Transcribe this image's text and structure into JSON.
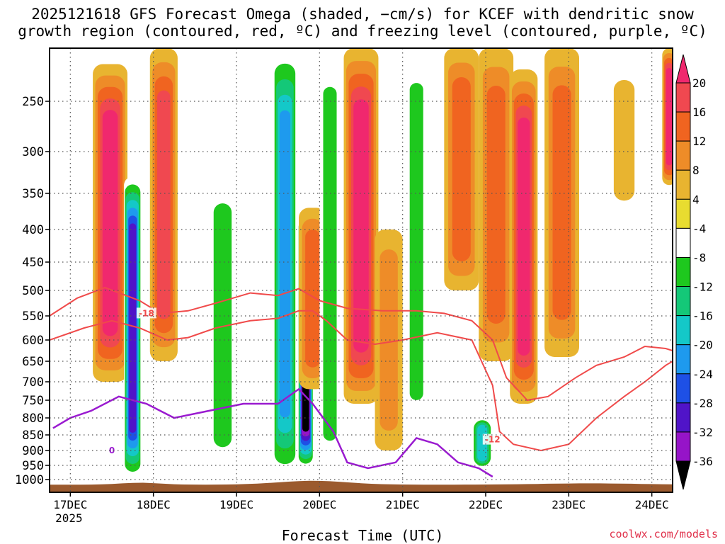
{
  "title_lines": [
    "2025121618 GFS Forecast Omega (shaded, −cm/s) for KCEF with dendritic snow",
    "growth region (contoured, red, ºC) and freezing level (contoured, purple, ºC)"
  ],
  "x_axis_title": "Forecast Time (UTC)",
  "credit": "coolwx.com/models",
  "colors": {
    "contour_dgz": "#f04a4a",
    "contour_freezing": "#9a1ad0",
    "terrain": "#9b5a2e",
    "grid": "#555555"
  },
  "chart_data": {
    "type": "heatmap",
    "x_ticks": [
      {
        "label": "17DEC",
        "sub": "2025",
        "t": 0
      },
      {
        "label": "18DEC",
        "t": 24
      },
      {
        "label": "19DEC",
        "t": 48
      },
      {
        "label": "20DEC",
        "t": 72
      },
      {
        "label": "21DEC",
        "t": 96
      },
      {
        "label": "22DEC",
        "t": 120
      },
      {
        "label": "23DEC",
        "t": 144
      },
      {
        "label": "24DEC",
        "t": 168
      }
    ],
    "x_range_hours": [
      -6,
      174
    ],
    "y_ticks": [
      250,
      300,
      350,
      400,
      450,
      500,
      550,
      600,
      650,
      700,
      750,
      800,
      850,
      900,
      950,
      1000
    ],
    "y_range_hpa": [
      200,
      1020
    ],
    "grid": true,
    "colorbar": {
      "levels": [
        20,
        16,
        12,
        8,
        4,
        -4,
        -8,
        -12,
        -16,
        -20,
        -24,
        -28,
        -32,
        -36
      ],
      "colors": [
        "#f0286e",
        "#f04850",
        "#f06420",
        "#ee8c28",
        "#e8b430",
        "#e8dc30",
        "#ffffff",
        "#1ec81e",
        "#14c878",
        "#14c8c8",
        "#1e9aee",
        "#1e50e6",
        "#5014c8",
        "#9614c8",
        "#a0a0a0",
        "#000000"
      ]
    },
    "omega_features": [
      {
        "t": 11.5,
        "p_top": 215,
        "p_bot": 700,
        "w": 5,
        "v": 20
      },
      {
        "t": 27,
        "p_top": 200,
        "p_bot": 650,
        "w": 4,
        "v": 18
      },
      {
        "t": 18,
        "p_top": 330,
        "p_bot": 1000,
        "w": 2.5,
        "v": -30
      },
      {
        "t": 44,
        "p_top": 330,
        "p_bot": 980,
        "w": 4,
        "v": -10
      },
      {
        "t": 62,
        "p_top": 200,
        "p_bot": 1000,
        "w": 3.5,
        "v": -20
      },
      {
        "t": 68,
        "p_top": 380,
        "p_bot": 960,
        "w": 2.2,
        "v": -40
      },
      {
        "t": 70,
        "p_top": 370,
        "p_bot": 720,
        "w": 4,
        "v": 14
      },
      {
        "t": 75,
        "p_top": 200,
        "p_bot": 1000,
        "w": 3,
        "v": -10
      },
      {
        "t": 84,
        "p_top": 200,
        "p_bot": 760,
        "w": 5,
        "v": 20
      },
      {
        "t": 92,
        "p_top": 400,
        "p_bot": 900,
        "w": 4,
        "v": 8
      },
      {
        "t": 100,
        "p_top": 200,
        "p_bot": 850,
        "w": 3,
        "v": -8
      },
      {
        "t": 113,
        "p_top": 200,
        "p_bot": 500,
        "w": 5,
        "v": 12
      },
      {
        "t": 119,
        "p_top": 800,
        "p_bot": 960,
        "w": 3,
        "v": -18
      },
      {
        "t": 123,
        "p_top": 200,
        "p_bot": 650,
        "w": 5,
        "v": 14
      },
      {
        "t": 131,
        "p_top": 220,
        "p_bot": 760,
        "w": 4,
        "v": 20
      },
      {
        "t": 142,
        "p_top": 200,
        "p_bot": 640,
        "w": 5,
        "v": 12
      },
      {
        "t": 160,
        "p_top": 230,
        "p_bot": 360,
        "w": 3,
        "v": 6
      },
      {
        "t": 173,
        "p_top": 200,
        "p_bot": 340,
        "w": 2,
        "v": 20
      }
    ],
    "contours": [
      {
        "label": "-18",
        "kind": "dgz",
        "label_at": {
          "t": 22,
          "p": 545
        },
        "points": [
          [
            -6,
            550
          ],
          [
            2,
            515
          ],
          [
            10,
            495
          ],
          [
            20,
            520
          ],
          [
            26,
            545
          ],
          [
            34,
            540
          ],
          [
            42,
            525
          ],
          [
            52,
            505
          ],
          [
            60,
            510
          ],
          [
            66,
            497
          ],
          [
            72,
            520
          ],
          [
            80,
            535
          ],
          [
            90,
            540
          ],
          [
            100,
            540
          ],
          [
            108,
            545
          ],
          [
            116,
            560
          ],
          [
            122,
            600
          ],
          [
            126,
            690
          ],
          [
            132,
            750
          ],
          [
            138,
            740
          ],
          [
            146,
            690
          ],
          [
            152,
            660
          ],
          [
            160,
            640
          ],
          [
            166,
            615
          ],
          [
            172,
            620
          ],
          [
            174,
            625
          ]
        ]
      },
      {
        "label": "-12",
        "kind": "dgz",
        "label_at": {
          "t": 122,
          "p": 865
        },
        "points": [
          [
            -6,
            600
          ],
          [
            4,
            575
          ],
          [
            12,
            560
          ],
          [
            20,
            575
          ],
          [
            28,
            600
          ],
          [
            34,
            595
          ],
          [
            42,
            575
          ],
          [
            52,
            560
          ],
          [
            60,
            555
          ],
          [
            66,
            540
          ],
          [
            70,
            540
          ],
          [
            74,
            560
          ],
          [
            80,
            600
          ],
          [
            88,
            610
          ],
          [
            96,
            600
          ],
          [
            106,
            585
          ],
          [
            116,
            600
          ],
          [
            122,
            710
          ],
          [
            124,
            840
          ],
          [
            128,
            880
          ],
          [
            136,
            900
          ],
          [
            144,
            880
          ],
          [
            152,
            800
          ],
          [
            160,
            740
          ],
          [
            166,
            700
          ],
          [
            172,
            660
          ],
          [
            174,
            650
          ]
        ]
      },
      {
        "label": "0",
        "kind": "freezing",
        "label_at": {
          "t": 12,
          "p": 900
        },
        "points": [
          [
            -5,
            830
          ],
          [
            0,
            800
          ],
          [
            6,
            780
          ],
          [
            14,
            740
          ],
          [
            22,
            760
          ],
          [
            30,
            800
          ],
          [
            40,
            780
          ],
          [
            50,
            760
          ],
          [
            60,
            760
          ],
          [
            66,
            720
          ],
          [
            70,
            760
          ],
          [
            76,
            840
          ],
          [
            80,
            940
          ],
          [
            86,
            960
          ],
          [
            94,
            940
          ],
          [
            100,
            860
          ],
          [
            106,
            880
          ],
          [
            112,
            940
          ],
          [
            118,
            960
          ],
          [
            122,
            990
          ]
        ]
      }
    ]
  }
}
